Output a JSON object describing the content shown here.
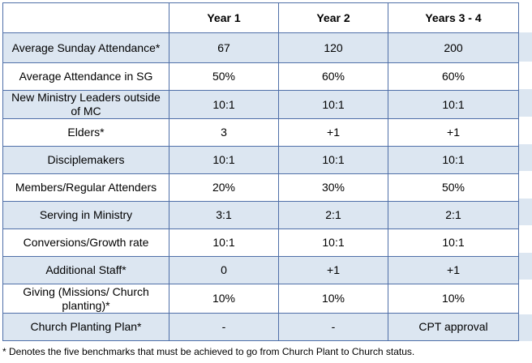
{
  "headers": [
    "",
    "Year 1",
    "Year 2",
    "Years 3 - 4"
  ],
  "rows": [
    [
      "Average Sunday Attendance*",
      "67",
      "120",
      "200"
    ],
    [
      "Average Attendance in SG",
      "50%",
      "60%",
      "60%"
    ],
    [
      "New Ministry Leaders outside of MC",
      "10:1",
      "10:1",
      "10:1"
    ],
    [
      "Elders*",
      "3",
      "+1",
      "+1"
    ],
    [
      "Disciplemakers",
      "10:1",
      "10:1",
      "10:1"
    ],
    [
      "Members/Regular Attenders",
      "20%",
      "30%",
      "50%"
    ],
    [
      "Serving in Ministry",
      "3:1",
      "2:1",
      "2:1"
    ],
    [
      "Conversions/Growth rate",
      "10:1",
      "10:1",
      "10:1"
    ],
    [
      "Additional Staff*",
      "0",
      "+1",
      "+1"
    ],
    [
      "Giving (Missions/ Church planting)*",
      "10%",
      "10%",
      "10%"
    ],
    [
      "Church Planting Plan*",
      "-",
      "-",
      "CPT approval"
    ]
  ],
  "footnote": "* Denotes the five benchmarks that must be achieved to go from Church Plant to Church status.",
  "colors": {
    "border": "#4f6fa8",
    "band": "#dce6f1"
  }
}
